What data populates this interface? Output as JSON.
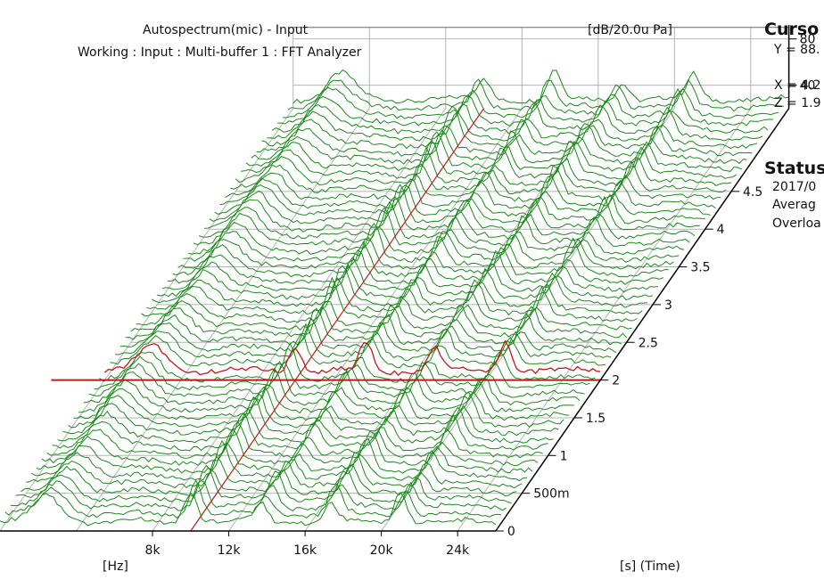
{
  "header": {
    "title": "Autospectrum(mic) - Input",
    "subtitle": "Working : Input : Multi-buffer 1 : FFT Analyzer",
    "unit": "[dB/20.0u Pa]"
  },
  "side": {
    "cursor_heading": "Curso",
    "cursor_y": "Y = 88.",
    "cursor_x": "X = 4.2",
    "cursor_z": "Z = 1.9",
    "status_heading": "Status",
    "status_date": "2017/0",
    "status_average": "Averag",
    "status_overload": "Overloa"
  },
  "chart_data": {
    "type": "waterfall",
    "title": "Autospectrum(mic) - Input",
    "subtitle": "Working : Input : Multi-buffer 1 : FFT Analyzer",
    "x_axis": {
      "label": "[Hz]",
      "ticks": [
        "8k",
        "12k",
        "16k",
        "20k",
        "24k"
      ],
      "tick_values": [
        8000,
        12000,
        16000,
        20000,
        24000
      ]
    },
    "z_axis": {
      "label": "[s] (Time)",
      "ticks": [
        "0",
        "500m",
        "1",
        "1.5",
        "2",
        "2.5",
        "3",
        "3.5",
        "4",
        "4.5"
      ],
      "tick_values": [
        0,
        0.5,
        1,
        1.5,
        2,
        2.5,
        3,
        3.5,
        4,
        4.5
      ]
    },
    "y_axis": {
      "label": "[dB/20.0u Pa]",
      "ticks": [
        "40",
        "80"
      ],
      "tick_values": [
        40,
        80
      ]
    },
    "cursor_slice_time": 2,
    "peak_frequencies_hz": [
      10000,
      13700,
      17300,
      21000
    ],
    "grid": true,
    "colors": {
      "spectrum": "#1a8a1a",
      "cursor": "#c0181a",
      "grid": "#b3b3b3",
      "axis": "#000000"
    }
  }
}
